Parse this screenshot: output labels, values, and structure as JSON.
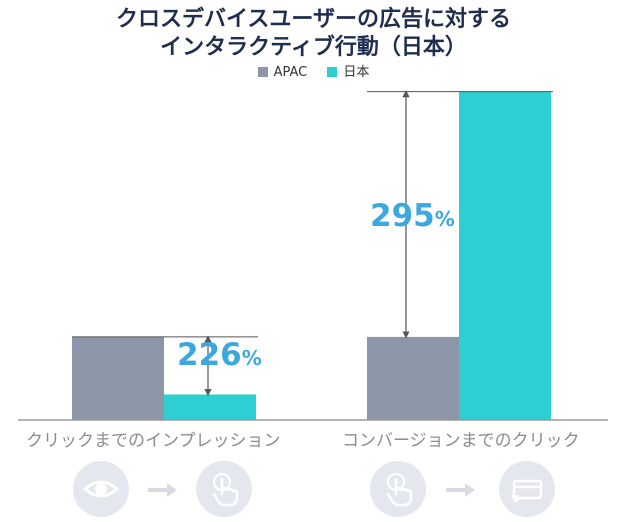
{
  "title_line1": "クロスデバイスユーザーの広告に対する",
  "title_line2": "インタラクティブ行動（日本）",
  "colors": {
    "apac": "#8c96a8",
    "japan": "#2ecfd3",
    "pct": "#3da8e0",
    "icon_bg": "#e4e7ed",
    "icon_fg": "#ffffff"
  },
  "chart_data": {
    "type": "bar",
    "categories": [
      "クリックまでのインプレッション",
      "コンバージョンまでのクリック"
    ],
    "series": [
      {
        "name": "APAC",
        "values": [
          100,
          100
        ]
      },
      {
        "name": "日本",
        "values": [
          30.7,
          395
        ]
      }
    ],
    "annotations": [
      {
        "category": "クリックまでのインプレッション",
        "number": "226",
        "unit": "%"
      },
      {
        "category": "コンバージョンまでのクリック",
        "number": "295",
        "unit": "%"
      }
    ],
    "ylim": [
      0,
      400
    ]
  },
  "icons": [
    [
      "eye-icon",
      "arrow-right-icon",
      "touch-icon"
    ],
    [
      "touch-icon",
      "arrow-right-icon",
      "card-icon"
    ]
  ]
}
